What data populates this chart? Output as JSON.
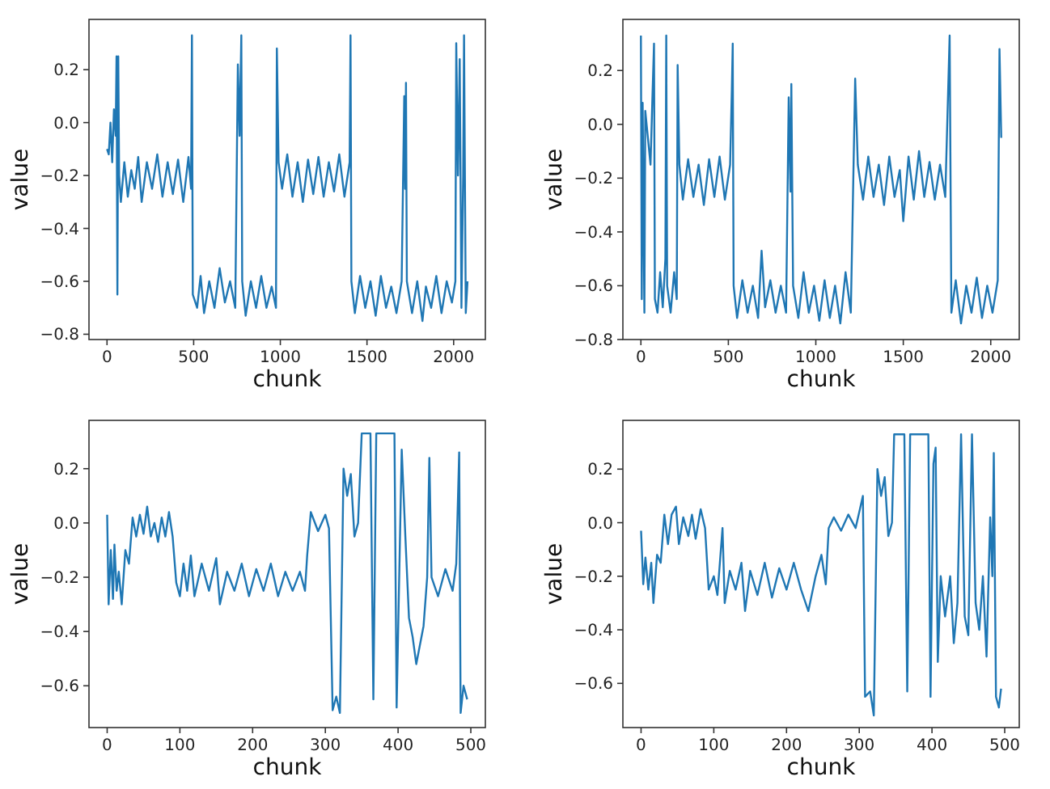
{
  "chart_data": [
    {
      "type": "line",
      "xlabel": "chunk",
      "ylabel": "value",
      "xlim": [
        -104,
        2183
      ],
      "ylim": [
        -0.82,
        0.39
      ],
      "xticks": [
        0,
        500,
        1000,
        1500,
        2000
      ],
      "yticks": [
        {
          "value": -0.8,
          "label": "−0.8"
        },
        {
          "value": -0.6,
          "label": "−0.6"
        },
        {
          "value": -0.4,
          "label": "−0.4"
        },
        {
          "value": -0.2,
          "label": "−0.2"
        },
        {
          "value": 0,
          "label": "0.0"
        },
        {
          "value": 0.2,
          "label": "0.2"
        }
      ],
      "grid": false,
      "series": [
        {
          "color": "#1f77b4",
          "x": [
            0,
            10,
            20,
            30,
            40,
            50,
            55,
            60,
            65,
            70,
            80,
            100,
            120,
            140,
            160,
            180,
            200,
            230,
            260,
            290,
            320,
            350,
            380,
            410,
            440,
            470,
            485,
            490,
            495,
            520,
            540,
            560,
            590,
            620,
            650,
            680,
            710,
            740,
            755,
            765,
            775,
            780,
            800,
            830,
            860,
            890,
            920,
            950,
            975,
            980,
            990,
            1010,
            1040,
            1070,
            1100,
            1130,
            1160,
            1190,
            1220,
            1250,
            1280,
            1310,
            1340,
            1370,
            1400,
            1405,
            1410,
            1430,
            1460,
            1490,
            1520,
            1550,
            1580,
            1610,
            1640,
            1670,
            1700,
            1715,
            1720,
            1725,
            1730,
            1760,
            1790,
            1820,
            1840,
            1870,
            1900,
            1930,
            1960,
            1990,
            2010,
            2015,
            2025,
            2035,
            2045,
            2055,
            2060,
            2070,
            2080
          ],
          "values": [
            -0.1,
            -0.12,
            0.0,
            -0.15,
            0.05,
            -0.05,
            0.25,
            -0.65,
            0.25,
            -0.2,
            -0.3,
            -0.15,
            -0.28,
            -0.18,
            -0.25,
            -0.13,
            -0.3,
            -0.15,
            -0.25,
            -0.12,
            -0.28,
            -0.15,
            -0.27,
            -0.14,
            -0.3,
            -0.13,
            -0.25,
            0.33,
            -0.65,
            -0.7,
            -0.58,
            -0.72,
            -0.6,
            -0.7,
            -0.55,
            -0.68,
            -0.6,
            -0.7,
            0.22,
            -0.05,
            0.33,
            -0.6,
            -0.73,
            -0.6,
            -0.7,
            -0.58,
            -0.7,
            -0.62,
            -0.7,
            0.28,
            -0.15,
            -0.25,
            -0.12,
            -0.28,
            -0.15,
            -0.3,
            -0.14,
            -0.27,
            -0.13,
            -0.28,
            -0.15,
            -0.26,
            -0.12,
            -0.28,
            -0.15,
            0.33,
            -0.6,
            -0.72,
            -0.58,
            -0.7,
            -0.6,
            -0.73,
            -0.58,
            -0.7,
            -0.62,
            -0.72,
            -0.6,
            0.1,
            -0.25,
            0.15,
            -0.6,
            -0.72,
            -0.6,
            -0.75,
            -0.62,
            -0.7,
            -0.58,
            -0.72,
            -0.6,
            -0.68,
            -0.6,
            0.3,
            -0.2,
            0.24,
            -0.7,
            -0.2,
            0.33,
            -0.72,
            -0.6
          ]
        }
      ]
    },
    {
      "type": "line",
      "xlabel": "chunk",
      "ylabel": "value",
      "xlim": [
        -103,
        2163
      ],
      "ylim": [
        -0.8,
        0.39
      ],
      "xticks": [
        0,
        500,
        1000,
        1500,
        2000
      ],
      "yticks": [
        {
          "value": -0.8,
          "label": "−0.8"
        },
        {
          "value": -0.6,
          "label": "−0.6"
        },
        {
          "value": -0.4,
          "label": "−0.4"
        },
        {
          "value": -0.2,
          "label": "−0.2"
        },
        {
          "value": 0,
          "label": "0.0"
        },
        {
          "value": 0.2,
          "label": "0.2"
        }
      ],
      "grid": false,
      "series": [
        {
          "color": "#1f77b4",
          "x": [
            0,
            5,
            10,
            20,
            25,
            40,
            55,
            65,
            75,
            80,
            95,
            110,
            125,
            140,
            145,
            150,
            170,
            190,
            205,
            210,
            220,
            240,
            270,
            300,
            330,
            360,
            390,
            420,
            450,
            480,
            510,
            520,
            525,
            530,
            550,
            580,
            610,
            640,
            670,
            690,
            710,
            740,
            770,
            800,
            830,
            845,
            855,
            860,
            870,
            900,
            930,
            960,
            990,
            1020,
            1050,
            1080,
            1110,
            1140,
            1170,
            1200,
            1225,
            1240,
            1270,
            1300,
            1330,
            1360,
            1390,
            1420,
            1450,
            1480,
            1500,
            1530,
            1560,
            1590,
            1620,
            1650,
            1680,
            1710,
            1740,
            1765,
            1775,
            1800,
            1830,
            1860,
            1890,
            1920,
            1950,
            1980,
            2010,
            2040,
            2050,
            2060
          ],
          "values": [
            0.33,
            -0.65,
            0.08,
            -0.7,
            0.05,
            -0.05,
            -0.15,
            0.08,
            0.3,
            -0.65,
            -0.7,
            -0.55,
            -0.68,
            -0.5,
            0.33,
            -0.6,
            -0.7,
            -0.55,
            -0.65,
            0.22,
            -0.15,
            -0.28,
            -0.13,
            -0.27,
            -0.15,
            -0.3,
            -0.13,
            -0.27,
            -0.12,
            -0.28,
            -0.15,
            0.13,
            0.3,
            -0.6,
            -0.72,
            -0.58,
            -0.7,
            -0.6,
            -0.72,
            -0.47,
            -0.68,
            -0.58,
            -0.7,
            -0.6,
            -0.7,
            0.1,
            -0.25,
            0.15,
            -0.6,
            -0.72,
            -0.55,
            -0.7,
            -0.6,
            -0.73,
            -0.58,
            -0.72,
            -0.6,
            -0.74,
            -0.55,
            -0.7,
            0.17,
            -0.15,
            -0.28,
            -0.12,
            -0.27,
            -0.15,
            -0.3,
            -0.12,
            -0.27,
            -0.17,
            -0.36,
            -0.12,
            -0.28,
            -0.1,
            -0.27,
            -0.14,
            -0.28,
            -0.15,
            -0.27,
            0.33,
            -0.7,
            -0.58,
            -0.74,
            -0.6,
            -0.7,
            -0.57,
            -0.72,
            -0.6,
            -0.7,
            -0.58,
            0.28,
            -0.05
          ]
        }
      ]
    },
    {
      "type": "line",
      "xlabel": "chunk",
      "ylabel": "value",
      "xlim": [
        -25,
        520
      ],
      "ylim": [
        -0.754,
        0.378
      ],
      "xticks": [
        0,
        100,
        200,
        300,
        400,
        500
      ],
      "yticks": [
        {
          "value": -0.6,
          "label": "−0.6"
        },
        {
          "value": -0.4,
          "label": "−0.4"
        },
        {
          "value": -0.2,
          "label": "−0.2"
        },
        {
          "value": 0,
          "label": "0.0"
        },
        {
          "value": 0.2,
          "label": "0.2"
        }
      ],
      "grid": false,
      "series": [
        {
          "color": "#1f77b4",
          "x": [
            0,
            2,
            5,
            8,
            10,
            13,
            16,
            20,
            25,
            30,
            35,
            40,
            45,
            50,
            55,
            60,
            65,
            70,
            75,
            80,
            85,
            90,
            95,
            100,
            105,
            110,
            115,
            120,
            130,
            140,
            150,
            155,
            165,
            175,
            185,
            195,
            205,
            215,
            225,
            235,
            245,
            255,
            265,
            272,
            275,
            280,
            290,
            300,
            305,
            310,
            315,
            320,
            325,
            330,
            335,
            340,
            345,
            350,
            362,
            366,
            370,
            395,
            398,
            405,
            410,
            415,
            420,
            425,
            430,
            435,
            440,
            443,
            446,
            455,
            465,
            475,
            480,
            484,
            486,
            490,
            495
          ],
          "values": [
            0.03,
            -0.3,
            -0.1,
            -0.28,
            -0.08,
            -0.25,
            -0.18,
            -0.3,
            -0.1,
            -0.15,
            0.02,
            -0.05,
            0.03,
            -0.04,
            0.06,
            -0.05,
            0.0,
            -0.07,
            0.02,
            -0.05,
            0.04,
            -0.05,
            -0.22,
            -0.27,
            -0.15,
            -0.25,
            -0.12,
            -0.27,
            -0.15,
            -0.25,
            -0.13,
            -0.3,
            -0.18,
            -0.25,
            -0.15,
            -0.27,
            -0.17,
            -0.25,
            -0.15,
            -0.27,
            -0.18,
            -0.25,
            -0.18,
            -0.25,
            -0.12,
            0.04,
            -0.03,
            0.03,
            -0.02,
            -0.69,
            -0.64,
            -0.7,
            0.2,
            0.1,
            0.18,
            -0.05,
            0.0,
            0.33,
            0.33,
            -0.65,
            0.33,
            0.33,
            -0.68,
            0.27,
            -0.05,
            -0.35,
            -0.42,
            -0.52,
            -0.45,
            -0.38,
            -0.2,
            0.24,
            -0.2,
            -0.27,
            -0.17,
            -0.25,
            -0.15,
            0.26,
            -0.7,
            -0.6,
            -0.65
          ]
        }
      ]
    },
    {
      "type": "line",
      "xlabel": "chunk",
      "ylabel": "value",
      "xlim": [
        -25,
        520
      ],
      "ylim": [
        -0.765,
        0.382
      ],
      "xticks": [
        0,
        100,
        200,
        300,
        400,
        500
      ],
      "yticks": [
        {
          "value": -0.6,
          "label": "−0.6"
        },
        {
          "value": -0.4,
          "label": "−0.4"
        },
        {
          "value": -0.2,
          "label": "−0.2"
        },
        {
          "value": 0,
          "label": "0.0"
        },
        {
          "value": 0.2,
          "label": "0.2"
        }
      ],
      "grid": false,
      "series": [
        {
          "color": "#1f77b4",
          "x": [
            0,
            3,
            6,
            10,
            14,
            17,
            22,
            27,
            32,
            37,
            42,
            48,
            52,
            58,
            65,
            70,
            75,
            82,
            88,
            93,
            100,
            105,
            112,
            115,
            122,
            130,
            138,
            143,
            150,
            160,
            170,
            180,
            190,
            200,
            210,
            220,
            230,
            240,
            248,
            254,
            258,
            265,
            275,
            285,
            295,
            305,
            308,
            315,
            320,
            325,
            330,
            335,
            340,
            345,
            348,
            362,
            366,
            370,
            395,
            398,
            402,
            405,
            408,
            412,
            418,
            425,
            430,
            435,
            440,
            445,
            450,
            455,
            460,
            465,
            470,
            475,
            480,
            483,
            485,
            488,
            492,
            495
          ],
          "values": [
            -0.03,
            -0.23,
            -0.13,
            -0.25,
            -0.15,
            -0.3,
            -0.12,
            -0.15,
            0.03,
            -0.08,
            0.03,
            0.06,
            -0.08,
            0.02,
            -0.05,
            0.03,
            -0.06,
            0.05,
            -0.02,
            -0.25,
            -0.2,
            -0.27,
            -0.02,
            -0.3,
            -0.18,
            -0.25,
            -0.15,
            -0.33,
            -0.18,
            -0.27,
            -0.15,
            -0.28,
            -0.17,
            -0.25,
            -0.15,
            -0.25,
            -0.33,
            -0.2,
            -0.12,
            -0.23,
            -0.02,
            0.02,
            -0.03,
            0.03,
            -0.02,
            0.1,
            -0.65,
            -0.63,
            -0.72,
            0.2,
            0.1,
            0.17,
            -0.05,
            0.0,
            0.33,
            0.33,
            -0.63,
            0.33,
            0.33,
            -0.65,
            0.22,
            0.28,
            -0.52,
            -0.2,
            -0.35,
            -0.2,
            -0.45,
            -0.3,
            0.33,
            -0.35,
            -0.42,
            0.33,
            -0.3,
            -0.4,
            -0.2,
            -0.5,
            0.02,
            -0.2,
            0.26,
            -0.65,
            -0.69,
            -0.62
          ]
        }
      ]
    }
  ]
}
